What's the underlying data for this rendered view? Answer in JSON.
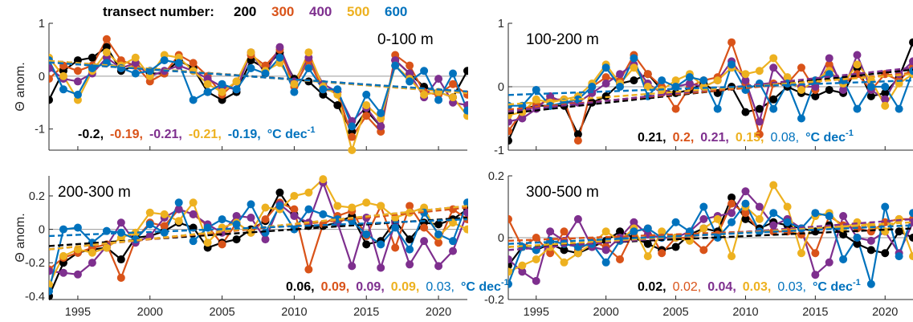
{
  "legend": {
    "title": "transect number:",
    "entries": [
      {
        "label": "200",
        "color": "#000000"
      },
      {
        "label": "300",
        "color": "#D95319"
      },
      {
        "label": "400",
        "color": "#7E2F8E"
      },
      {
        "label": "500",
        "color": "#EDB120"
      },
      {
        "label": "600",
        "color": "#0072BD"
      }
    ]
  },
  "colors": [
    "#000000",
    "#D95319",
    "#7E2F8E",
    "#EDB120",
    "#0072BD"
  ],
  "unit_text": "°C dec",
  "unit_exp": "-1",
  "chart_data": [
    {
      "type": "line",
      "title": "0-100 m",
      "ylabel": "Θ anom.",
      "xlim": [
        1993,
        2022
      ],
      "ylim": [
        -1.4,
        1
      ],
      "yticks": [
        -1,
        0,
        1
      ],
      "xticks": [],
      "trend_text": [
        "-0.2,",
        "-0.19,",
        "-0.21,",
        "-0.21,",
        "-0.19,"
      ],
      "trend_bold": [
        true,
        true,
        true,
        true,
        true
      ],
      "trend_lines": [
        [
          0.28,
          -0.3
        ],
        [
          0.26,
          -0.29
        ],
        [
          0.29,
          -0.32
        ],
        [
          0.29,
          -0.32
        ],
        [
          0.26,
          -0.29
        ]
      ],
      "x": [
        1993,
        1994,
        1995,
        1996,
        1997,
        1998,
        1999,
        2000,
        2001,
        2002,
        2003,
        2004,
        2005,
        2006,
        2007,
        2008,
        2009,
        2010,
        2011,
        2012,
        2013,
        2014,
        2015,
        2016,
        2017,
        2018,
        2019,
        2020,
        2021,
        2022
      ],
      "series": [
        {
          "values": [
            -0.45,
            0.1,
            0.3,
            0.35,
            0.55,
            0.1,
            0.2,
            0.05,
            0.05,
            0.3,
            0.15,
            -0.3,
            -0.45,
            -0.3,
            0.3,
            0.15,
            0.45,
            -0.05,
            -0.1,
            -0.35,
            -0.55,
            -1.05,
            -0.65,
            -0.95,
            0.3,
            0.05,
            -0.2,
            -0.3,
            -0.4,
            0.1
          ]
        },
        {
          "values": [
            -0.05,
            0.2,
            0.1,
            0.2,
            0.7,
            0.3,
            0.2,
            -0.1,
            0.05,
            0.4,
            0.25,
            0,
            -0.35,
            -0.1,
            0.4,
            0.2,
            0.5,
            -0.2,
            0.3,
            -0.25,
            -0.3,
            -1.15,
            -0.75,
            -1.05,
            0.4,
            0.2,
            -0.3,
            -0.35,
            -0.15,
            -0.35
          ]
        },
        {
          "values": [
            0.15,
            -0.05,
            -0.1,
            0.05,
            0.35,
            0.15,
            0.25,
            0.0,
            0.1,
            0.2,
            0.1,
            -0.05,
            -0.2,
            -0.25,
            0.45,
            0.05,
            0.55,
            -0.1,
            0.35,
            -0.15,
            -0.3,
            -0.85,
            -0.6,
            -0.95,
            0.3,
            0.05,
            -0.4,
            -0.05,
            -0.5,
            -0.55
          ]
        },
        {
          "values": [
            0.35,
            0.0,
            -0.45,
            0.1,
            0.45,
            0.2,
            0.35,
            0.0,
            0.4,
            0.35,
            0.1,
            -0.15,
            -0.3,
            -0.1,
            0.45,
            0.1,
            0.25,
            -0.15,
            0.45,
            -0.2,
            -0.35,
            -1.4,
            -0.55,
            -0.8,
            0.2,
            -0.05,
            -0.35,
            -0.3,
            -0.4,
            -0.75
          ]
        },
        {
          "values": [
            0.3,
            -0.25,
            -0.35,
            0.15,
            0.25,
            0.15,
            0.05,
            0.1,
            0.3,
            0.25,
            -0.45,
            -0.3,
            -0.15,
            -0.25,
            0.15,
            0.05,
            0.35,
            -0.3,
            0.15,
            -0.25,
            -0.25,
            -0.95,
            -0.35,
            -0.7,
            0.2,
            -0.1,
            0.1,
            -0.45,
            0.05,
            -0.65
          ]
        }
      ]
    },
    {
      "type": "line",
      "title": "100-200 m",
      "ylabel": "",
      "xlim": [
        1993,
        2022
      ],
      "ylim": [
        -1,
        1
      ],
      "yticks": [
        -1,
        0,
        1
      ],
      "xticks": [],
      "trend_text": [
        "0.21,",
        "0.2,",
        "0.21,",
        "0.15,",
        "0.08,"
      ],
      "trend_bold": [
        true,
        true,
        true,
        true,
        false
      ],
      "trend_lines": [
        [
          -0.42,
          0.27
        ],
        [
          -0.36,
          0.22
        ],
        [
          -0.39,
          0.3
        ],
        [
          -0.28,
          0.2
        ],
        [
          -0.13,
          0.1
        ]
      ],
      "x": [
        1993,
        1994,
        1995,
        1996,
        1997,
        1998,
        1999,
        2000,
        2001,
        2002,
        2003,
        2004,
        2005,
        2006,
        2007,
        2008,
        2009,
        2010,
        2011,
        2012,
        2013,
        2014,
        2015,
        2016,
        2017,
        2018,
        2019,
        2020,
        2021,
        2022
      ],
      "series": [
        {
          "values": [
            -0.85,
            -0.35,
            -0.3,
            -0.3,
            -0.3,
            -0.75,
            -0.25,
            -0.15,
            0.05,
            0.1,
            0.2,
            -0.05,
            -0.1,
            -0.05,
            0.05,
            -0.1,
            0.0,
            -0.4,
            -0.35,
            -0.2,
            0.0,
            -0.1,
            -0.15,
            -0.05,
            -0.1,
            0.3,
            -0.15,
            -0.1,
            0.15,
            0.7
          ]
        },
        {
          "values": [
            -0.7,
            -0.4,
            -0.3,
            -0.2,
            -0.2,
            -0.85,
            0.0,
            0.15,
            0.1,
            0.5,
            0.2,
            0.0,
            -0.35,
            0.0,
            0.1,
            0.15,
            0.7,
            0.05,
            -0.75,
            0.05,
            0.05,
            0.3,
            -0.05,
            0.35,
            0.05,
            0.2,
            -0.05,
            0.2,
            0.1,
            0.3
          ]
        },
        {
          "values": [
            -0.55,
            -0.5,
            -0.35,
            -0.15,
            -0.25,
            -0.25,
            -0.1,
            0.05,
            0.2,
            0.35,
            0.05,
            -0.1,
            0.0,
            0.05,
            0.0,
            0.1,
            0.4,
            0.1,
            -0.55,
            0.3,
            0.05,
            0.0,
            0.0,
            0.45,
            -0.05,
            0.5,
            -0.05,
            -0.2,
            0.2,
            0.4
          ]
        },
        {
          "values": [
            -0.45,
            -0.4,
            -0.2,
            -0.25,
            -0.2,
            -0.15,
            0.05,
            0.35,
            0.05,
            0.3,
            0.0,
            -0.05,
            0.1,
            0.2,
            0.0,
            0.1,
            0.3,
            0.2,
            0.25,
            0.45,
            0.15,
            -0.05,
            0.1,
            0.25,
            0.05,
            0.35,
            0.1,
            -0.3,
            0.05,
            0.2
          ]
        },
        {
          "values": [
            -0.3,
            -0.3,
            -0.05,
            -0.3,
            -0.25,
            -0.2,
            0.0,
            0.3,
            0.0,
            0.45,
            -0.15,
            0.1,
            0.0,
            0.15,
            0.1,
            -0.35,
            0.35,
            -0.05,
            0.05,
            -0.35,
            0.05,
            -0.5,
            0.1,
            0.2,
            0.1,
            -0.35,
            0.0,
            0.0,
            -0.35,
            0.25
          ]
        }
      ]
    },
    {
      "type": "line",
      "title": "200-300 m",
      "ylabel": "Θ anom.",
      "xlim": [
        1993,
        2022
      ],
      "ylim": [
        -0.42,
        0.32
      ],
      "yticks": [
        -0.4,
        -0.2,
        0,
        0.2
      ],
      "xticks": [
        1995,
        2000,
        2005,
        2010,
        2015,
        2020
      ],
      "trend_text": [
        "0.06,",
        "0.09,",
        "0.09,",
        "0.09,",
        "0.03,"
      ],
      "trend_bold": [
        true,
        true,
        true,
        true,
        false
      ],
      "trend_lines": [
        [
          -0.1,
          0.07
        ],
        [
          -0.12,
          0.13
        ],
        [
          -0.12,
          0.14
        ],
        [
          -0.12,
          0.14
        ],
        [
          -0.04,
          0.06
        ]
      ],
      "x": [
        1993,
        1994,
        1995,
        1996,
        1997,
        1998,
        1999,
        2000,
        2001,
        2002,
        2003,
        2004,
        2005,
        2006,
        2007,
        2008,
        2009,
        2010,
        2011,
        2012,
        2013,
        2014,
        2015,
        2016,
        2017,
        2018,
        2019,
        2020,
        2021,
        2022
      ],
      "series": [
        {
          "values": [
            -0.4,
            -0.2,
            -0.14,
            -0.12,
            -0.11,
            -0.18,
            -0.05,
            -0.04,
            -0.01,
            0.04,
            0.01,
            -0.11,
            -0.08,
            -0.06,
            0.0,
            0.05,
            0.22,
            0.09,
            0.02,
            0.02,
            0.04,
            0.08,
            -0.09,
            -0.07,
            0.05,
            -0.06,
            0.04,
            0.03,
            0.06,
            0.12
          ]
        },
        {
          "values": [
            -0.24,
            -0.17,
            -0.14,
            -0.11,
            -0.09,
            -0.29,
            -0.06,
            0.04,
            0.02,
            0.12,
            0.09,
            0.02,
            -0.09,
            0.04,
            -0.02,
            0.06,
            0.16,
            0.12,
            -0.24,
            0.03,
            0.08,
            0.11,
            -0.04,
            0.14,
            -0.11,
            0.14,
            0.01,
            -0.08,
            0.12,
            0.06
          ]
        },
        {
          "values": [
            -0.25,
            -0.26,
            -0.27,
            -0.2,
            -0.1,
            0.04,
            -0.08,
            -0.04,
            0.07,
            0.12,
            0.09,
            0.03,
            -0.02,
            0.08,
            0.07,
            -0.06,
            0.15,
            0.08,
            0.04,
            0.28,
            0.04,
            -0.22,
            0.07,
            -0.23,
            0.04,
            -0.21,
            -0.07,
            -0.22,
            -0.13,
            0.1
          ]
        },
        {
          "values": [
            -0.33,
            -0.16,
            -0.12,
            -0.14,
            -0.11,
            -0.05,
            -0.02,
            0.1,
            0.09,
            0.05,
            0.16,
            -0.08,
            0.01,
            0.04,
            -0.02,
            0.13,
            0.12,
            0.2,
            0.22,
            0.3,
            0.14,
            0.13,
            0.16,
            0.14,
            0.07,
            0.1,
            0.13,
            -0.04,
            0.04,
            0.0
          ]
        },
        {
          "values": [
            -0.37,
            0.0,
            0.01,
            -0.08,
            -0.01,
            -0.02,
            -0.06,
            0.03,
            -0.02,
            0.16,
            -0.07,
            0.01,
            0.06,
            0.03,
            0.15,
            -0.02,
            0.14,
            0.0,
            0.12,
            0.09,
            0.06,
            0.05,
            -0.03,
            -0.09,
            0.01,
            -0.12,
            0.1,
            -0.03,
            -0.07,
            0.16
          ]
        }
      ]
    },
    {
      "type": "line",
      "title": "300-500 m",
      "ylabel": "",
      "xlim": [
        1993,
        2022
      ],
      "ylim": [
        -0.2,
        0.2
      ],
      "yticks": [
        -0.2,
        0,
        0.2
      ],
      "xticks": [
        1995,
        2000,
        2005,
        2010,
        2015,
        2020
      ],
      "trend_text": [
        "0.02,",
        "0.02,",
        "0.04,",
        "0.03,",
        "0.03,"
      ],
      "trend_bold": [
        true,
        false,
        true,
        true,
        false
      ],
      "trend_lines": [
        [
          -0.03,
          0.03
        ],
        [
          -0.01,
          0.04
        ],
        [
          -0.04,
          0.06
        ],
        [
          -0.03,
          0.05
        ],
        [
          -0.02,
          0.04
        ]
      ],
      "x": [
        1993,
        1994,
        1995,
        1996,
        1997,
        1998,
        1999,
        2000,
        2001,
        2002,
        2003,
        2004,
        2005,
        2006,
        2007,
        2008,
        2009,
        2010,
        2011,
        2012,
        2013,
        2014,
        2015,
        2016,
        2017,
        2018,
        2019,
        2020,
        2021,
        2022
      ],
      "series": [
        {
          "values": [
            -0.09,
            -0.03,
            -0.04,
            -0.02,
            -0.04,
            -0.05,
            -0.03,
            -0.01,
            0.02,
            0.0,
            -0.02,
            -0.04,
            -0.03,
            0.01,
            0.03,
            0.02,
            0.13,
            0.06,
            0.03,
            0.05,
            0.04,
            0.03,
            0.02,
            0.04,
            0.01,
            -0.02,
            -0.04,
            -0.05,
            0.02,
            0.0
          ]
        },
        {
          "values": [
            0.06,
            -0.03,
            0.0,
            -0.05,
            0.02,
            -0.04,
            -0.01,
            -0.03,
            -0.07,
            0.02,
            0.03,
            -0.05,
            0.0,
            0.0,
            -0.04,
            0.01,
            0.11,
            0.08,
            0.02,
            0.02,
            0.02,
            0.01,
            -0.05,
            0.07,
            0.04,
            0.03,
            0.02,
            0.05,
            0.06,
            0.06
          ]
        },
        {
          "values": [
            -0.07,
            -0.11,
            -0.14,
            0.02,
            -0.01,
            0.06,
            -0.03,
            -0.04,
            0.0,
            0.05,
            0.01,
            0.0,
            0.0,
            0.02,
            0.06,
            0.07,
            0.08,
            0.15,
            0.1,
            0.04,
            0.06,
            0.03,
            -0.12,
            -0.08,
            0.07,
            0.0,
            -0.01,
            0.02,
            -0.05,
            0.05
          ]
        },
        {
          "values": [
            -0.11,
            -0.09,
            -0.07,
            -0.03,
            -0.08,
            -0.05,
            -0.02,
            0.02,
            -0.01,
            0.03,
            -0.06,
            0.02,
            0.0,
            -0.01,
            0.03,
            0.06,
            -0.06,
            0.1,
            0.06,
            0.17,
            0.1,
            -0.05,
            0.07,
            0.08,
            0.03,
            0.05,
            0.04,
            0.02,
            0.06,
            -0.06
          ]
        },
        {
          "values": [
            -0.15,
            -0.03,
            -0.04,
            -0.01,
            -0.02,
            -0.03,
            -0.02,
            -0.08,
            -0.01,
            0.02,
            0.03,
            0.0,
            0.05,
            0.02,
            0.1,
            0.0,
            0.05,
            0.11,
            0.02,
            0.08,
            0.05,
            0.03,
            0.08,
            0.07,
            -0.07,
            0.0,
            -0.15,
            0.1,
            -0.06,
            0.08
          ]
        }
      ]
    }
  ]
}
